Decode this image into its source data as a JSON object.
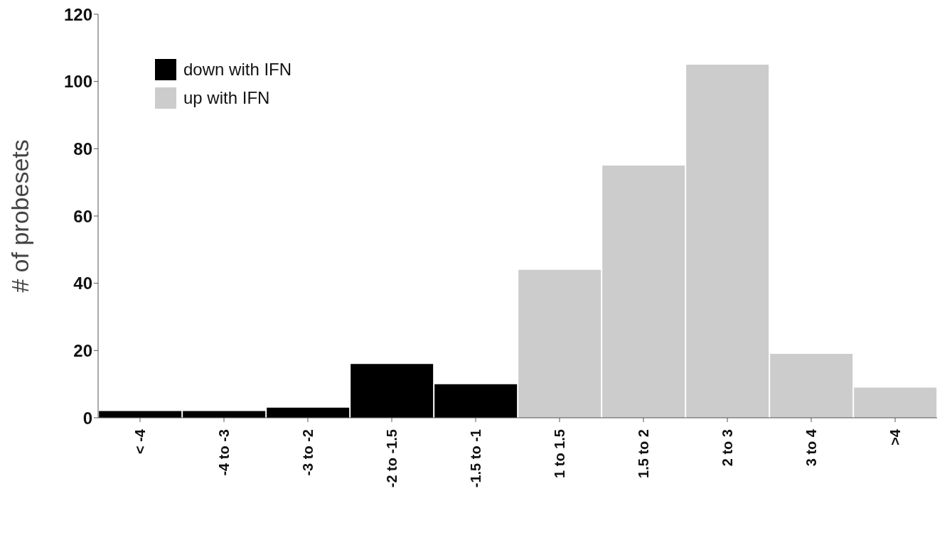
{
  "chart_data": {
    "type": "bar",
    "ylabel": "# of probesets",
    "categories": [
      "< -4",
      "-4 to -3",
      "-3 to -2",
      "-2 to -1.5",
      "-1.5 to -1",
      "1 to 1.5",
      "1.5 to 2",
      "2 to 3",
      "3 to 4",
      ">4"
    ],
    "series": [
      {
        "name": "down with IFN",
        "color": "#000000",
        "values": [
          2,
          2,
          3,
          16,
          10,
          null,
          null,
          null,
          null,
          null
        ]
      },
      {
        "name": "up with IFN",
        "color": "#cccccc",
        "values": [
          null,
          null,
          null,
          null,
          null,
          44,
          75,
          105,
          19,
          9
        ]
      }
    ],
    "stacked": true,
    "ylim": [
      0,
      120
    ],
    "yticks": [
      0,
      20,
      40,
      60,
      80,
      100,
      120
    ],
    "grid": false,
    "legend": "top left"
  }
}
